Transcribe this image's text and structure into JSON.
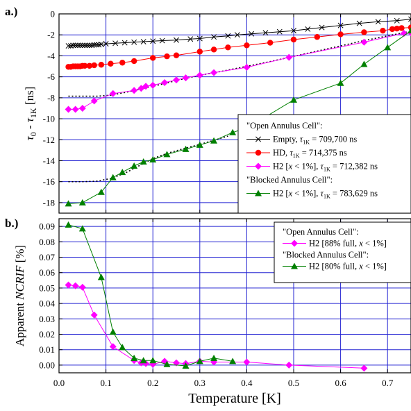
{
  "figure": {
    "xlabel": "Temperature [K]",
    "colors": {
      "grid": "#2323d2",
      "empty": "#000000",
      "hd": "#ff0000",
      "h2_open": "#ff00ff",
      "h2_blocked": "#008000"
    }
  },
  "chart_data": [
    {
      "panel_label": "a.)",
      "type": "line",
      "ylabel_main": "τ",
      "ylabel_sub0": "0",
      "ylabel_mid": " - τ",
      "ylabel_sub1": "1K",
      "ylabel_unit": " [ns]",
      "xlim": [
        0,
        0.75
      ],
      "ylim": [
        -19,
        0
      ],
      "xticks": [
        0.0,
        0.1,
        0.2,
        0.3,
        0.4,
        0.5,
        0.6,
        0.7
      ],
      "yticks": [
        0,
        -2,
        -4,
        -6,
        -8,
        -10,
        -12,
        -14,
        -16,
        -18
      ],
      "grid": true,
      "legend_position": "bottom-right",
      "legend": {
        "header_open": "\"Open Annulus Cell\":",
        "header_blocked": "\"Blocked Annulus Cell\":",
        "entries": [
          {
            "series": 0,
            "pre": "Empty, ",
            "tau": "τ",
            "sub": "1K",
            "post": " = 709,700 ns"
          },
          {
            "series": 1,
            "pre": "HD, ",
            "tau": "τ",
            "sub": "1K",
            "post": " = 714,375 ns"
          },
          {
            "series": 2,
            "pre": "H2 [",
            "italic": "x",
            "mid": " < 1%], ",
            "tau": "τ",
            "sub": "1K",
            "post": " = 712,382 ns"
          },
          {
            "series": 3,
            "pre": "H2 [",
            "italic": "x",
            "mid": " < 1%], ",
            "tau": "τ",
            "sub": "1K",
            "post": " = 783,629 ns"
          }
        ]
      },
      "series": [
        {
          "name": "Empty",
          "marker": "x",
          "color": "#000000",
          "x": [
            0.02,
            0.025,
            0.03,
            0.035,
            0.04,
            0.045,
            0.05,
            0.055,
            0.06,
            0.065,
            0.07,
            0.075,
            0.08,
            0.085,
            0.09,
            0.1,
            0.12,
            0.14,
            0.16,
            0.18,
            0.2,
            0.22,
            0.25,
            0.28,
            0.3,
            0.33,
            0.36,
            0.38,
            0.41,
            0.44,
            0.47,
            0.5,
            0.53,
            0.56,
            0.6,
            0.64,
            0.68,
            0.72,
            0.75
          ],
          "y": [
            -3.05,
            -3.05,
            -3.0,
            -3.0,
            -3.0,
            -3.0,
            -3.0,
            -3.0,
            -3.0,
            -3.0,
            -3.0,
            -2.95,
            -2.95,
            -2.95,
            -2.9,
            -2.85,
            -2.8,
            -2.75,
            -2.7,
            -2.65,
            -2.6,
            -2.55,
            -2.5,
            -2.4,
            -2.35,
            -2.2,
            -2.1,
            -2.0,
            -1.9,
            -1.8,
            -1.7,
            -1.6,
            -1.45,
            -1.3,
            -1.1,
            -0.9,
            -0.75,
            -0.65,
            -0.5
          ]
        },
        {
          "name": "HD",
          "marker": "circle",
          "color": "#ff0000",
          "x": [
            0.02,
            0.025,
            0.03,
            0.035,
            0.04,
            0.045,
            0.05,
            0.055,
            0.065,
            0.075,
            0.09,
            0.11,
            0.135,
            0.16,
            0.2,
            0.23,
            0.25,
            0.3,
            0.33,
            0.36,
            0.4,
            0.45,
            0.5,
            0.55,
            0.6,
            0.65,
            0.69,
            0.71,
            0.72,
            0.73,
            0.75
          ],
          "y": [
            -5.05,
            -5.05,
            -5.0,
            -5.0,
            -5.0,
            -5.0,
            -4.95,
            -4.95,
            -4.95,
            -4.9,
            -4.85,
            -4.75,
            -4.65,
            -4.5,
            -4.2,
            -4.05,
            -3.95,
            -3.6,
            -3.4,
            -3.2,
            -3.0,
            -2.75,
            -2.45,
            -2.2,
            -1.95,
            -1.75,
            -1.6,
            -1.45,
            -1.4,
            -1.35,
            -1.3
          ]
        },
        {
          "name": "H2 open",
          "marker": "diamond",
          "color": "#ff00ff",
          "x": [
            0.02,
            0.035,
            0.05,
            0.075,
            0.115,
            0.16,
            0.175,
            0.185,
            0.2,
            0.225,
            0.25,
            0.27,
            0.3,
            0.33,
            0.4,
            0.49,
            0.65,
            0.735,
            0.75
          ],
          "y": [
            -9.1,
            -9.1,
            -9.0,
            -8.3,
            -7.6,
            -7.3,
            -7.1,
            -6.9,
            -6.8,
            -6.55,
            -6.3,
            -6.1,
            -5.85,
            -5.6,
            -5.1,
            -4.15,
            -2.7,
            -1.85,
            -1.8
          ]
        },
        {
          "name": "H2 blocked",
          "marker": "triangle",
          "color": "#008000",
          "x": [
            0.02,
            0.05,
            0.09,
            0.115,
            0.135,
            0.16,
            0.18,
            0.2,
            0.23,
            0.27,
            0.3,
            0.33,
            0.37,
            0.4,
            0.5,
            0.6,
            0.65,
            0.7,
            0.75
          ],
          "y": [
            -18.1,
            -18.0,
            -17.0,
            -15.6,
            -15.1,
            -14.5,
            -14.1,
            -13.9,
            -13.4,
            -12.9,
            -12.5,
            -12.1,
            -11.3,
            -10.9,
            -8.2,
            -6.6,
            -4.8,
            -3.2,
            -1.6
          ]
        }
      ],
      "fits": [
        {
          "x": [
            0.02,
            0.05,
            0.08,
            0.11,
            0.14,
            0.18,
            0.22,
            0.26,
            0.3,
            0.35,
            0.4,
            0.45,
            0.5,
            0.55,
            0.6,
            0.65,
            0.7,
            0.75
          ],
          "y": [
            -7.85,
            -7.85,
            -7.85,
            -7.75,
            -7.5,
            -7.1,
            -6.7,
            -6.25,
            -5.85,
            -5.45,
            -5.0,
            -4.55,
            -4.05,
            -3.55,
            -3.05,
            -2.55,
            -2.1,
            -1.65
          ]
        },
        {
          "x": [
            0.02,
            0.05,
            0.08,
            0.11,
            0.14,
            0.17,
            0.2,
            0.23,
            0.27,
            0.3,
            0.33,
            0.36
          ],
          "y": [
            -16.0,
            -16.0,
            -15.95,
            -15.7,
            -15.2,
            -14.5,
            -13.8,
            -13.3,
            -12.8,
            -12.45,
            -12.05,
            -11.65
          ]
        }
      ]
    },
    {
      "panel_label": "b.)",
      "type": "line",
      "ylabel_pre": "Apparent ",
      "ylabel_italic": "NCRIF",
      "ylabel_post": " [%]",
      "xlim": [
        0,
        0.75
      ],
      "ylim": [
        -0.005,
        0.095
      ],
      "xticks": [
        0.0,
        0.1,
        0.2,
        0.3,
        0.4,
        0.5,
        0.6,
        0.7
      ],
      "xticklabels": [
        "0.0",
        "0.1",
        "0.2",
        "0.3",
        "0.4",
        "0.5",
        "0.6",
        "0.7"
      ],
      "yticks": [
        0.0,
        0.01,
        0.02,
        0.03,
        0.04,
        0.05,
        0.06,
        0.07,
        0.08,
        0.09
      ],
      "yticklabels": [
        "0.00",
        "0.01",
        "0.02",
        "0.03",
        "0.04",
        "0.05",
        "0.06",
        "0.07",
        "0.08",
        "0.09"
      ],
      "grid": true,
      "legend_position": "top-right",
      "legend": {
        "header_open": "\"Open Annulus Cell\":",
        "header_blocked": "\"Blocked Annulus Cell\":",
        "entries": [
          {
            "series": 0,
            "pre": "H2 [88% full, ",
            "italic": "x",
            "post": " < 1%]"
          },
          {
            "series": 1,
            "pre": "H2 [80% full, ",
            "italic": "x",
            "post": " < 1%]"
          }
        ]
      },
      "series": [
        {
          "name": "H2 open",
          "marker": "diamond",
          "color": "#ff00ff",
          "x": [
            0.02,
            0.035,
            0.05,
            0.075,
            0.115,
            0.16,
            0.175,
            0.185,
            0.2,
            0.225,
            0.25,
            0.27,
            0.3,
            0.33,
            0.4,
            0.49,
            0.65
          ],
          "y": [
            0.052,
            0.0515,
            0.0505,
            0.0325,
            0.012,
            0.003,
            0.0015,
            0.001,
            0.0005,
            0.0025,
            0.0015,
            0.001,
            0.0025,
            0.002,
            0.002,
            0.0,
            -0.002
          ]
        },
        {
          "name": "H2 blocked",
          "marker": "triangle",
          "color": "#008000",
          "x": [
            0.02,
            0.05,
            0.09,
            0.115,
            0.135,
            0.16,
            0.18,
            0.2,
            0.23,
            0.27,
            0.3,
            0.33,
            0.37
          ],
          "y": [
            0.091,
            0.0885,
            0.057,
            0.0215,
            0.0115,
            0.0045,
            0.003,
            0.003,
            0.0005,
            -0.0005,
            0.0025,
            0.0045,
            0.0025
          ]
        }
      ]
    }
  ]
}
